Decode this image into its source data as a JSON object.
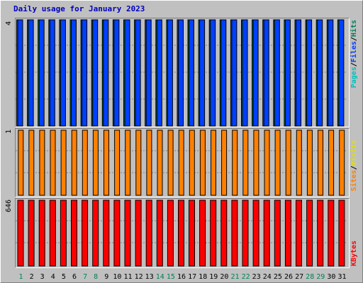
{
  "chart_data": {
    "type": "bar",
    "title": "Daily usage for January 2023",
    "categories": [
      "1",
      "2",
      "3",
      "4",
      "5",
      "6",
      "7",
      "8",
      "9",
      "10",
      "11",
      "12",
      "13",
      "14",
      "15",
      "16",
      "17",
      "18",
      "19",
      "20",
      "21",
      "22",
      "23",
      "24",
      "25",
      "26",
      "27",
      "28",
      "29",
      "30",
      "31"
    ],
    "weekend_days": [
      "1",
      "7",
      "8",
      "14",
      "15",
      "21",
      "22",
      "28",
      "29"
    ],
    "panels": [
      {
        "ymax_label": "4",
        "ymax": 4,
        "legend": [
          "Pages",
          "/",
          "Files",
          "/",
          "Hits"
        ],
        "series": [
          {
            "name": "Hits",
            "color": "#00805c",
            "values": [
              4,
              4,
              4,
              4,
              4,
              4,
              4,
              4,
              4,
              4,
              4,
              4,
              4,
              4,
              4,
              4,
              4,
              4,
              4,
              4,
              4,
              4,
              4,
              4,
              4,
              4,
              4,
              4,
              4,
              4,
              4
            ]
          },
          {
            "name": "Files",
            "color": "#0040ff",
            "values": [
              4,
              4,
              4,
              4,
              4,
              4,
              4,
              4,
              4,
              4,
              4,
              4,
              4,
              4,
              4,
              4,
              4,
              4,
              4,
              4,
              4,
              4,
              4,
              4,
              4,
              4,
              4,
              4,
              4,
              4,
              4
            ]
          },
          {
            "name": "Pages",
            "color": "#00c0c0",
            "values": [
              0,
              0,
              0,
              0,
              0,
              0,
              0,
              0,
              0,
              0,
              0,
              0,
              0,
              0,
              0,
              0,
              0,
              0,
              0,
              0,
              0,
              0,
              0,
              0,
              0,
              0,
              0,
              0,
              0,
              0,
              0
            ]
          }
        ]
      },
      {
        "ymax_label": "1",
        "ymax": 1,
        "legend": [
          "Sites",
          "/",
          "Visits"
        ],
        "series": [
          {
            "name": "Visits",
            "color": "#ffff00",
            "values": [
              0,
              0,
              0,
              0,
              0,
              0,
              0,
              0,
              0,
              0,
              0,
              0,
              0,
              0,
              0,
              0,
              0,
              0,
              0,
              0,
              0,
              0,
              0,
              0,
              0,
              0,
              0,
              0,
              0,
              0,
              0
            ]
          },
          {
            "name": "Sites",
            "color": "#ff8000",
            "values": [
              1,
              1,
              1,
              1,
              1,
              1,
              1,
              1,
              1,
              1,
              1,
              1,
              1,
              1,
              1,
              1,
              1,
              1,
              1,
              1,
              1,
              1,
              1,
              1,
              1,
              1,
              1,
              1,
              1,
              1,
              1
            ]
          }
        ]
      },
      {
        "ymax_label": "646",
        "ymax": 646,
        "legend": [
          "KBytes"
        ],
        "series": [
          {
            "name": "KBytes",
            "color": "#ff0000",
            "values": [
              646,
              646,
              646,
              646,
              646,
              646,
              646,
              646,
              646,
              646,
              646,
              646,
              646,
              646,
              646,
              646,
              646,
              646,
              646,
              646,
              646,
              646,
              646,
              646,
              646,
              646,
              646,
              646,
              646,
              646,
              646
            ]
          }
        ]
      }
    ],
    "colors": {
      "background": "#c0c0c0",
      "title": "#0000c0",
      "weekday_label": "#000000",
      "weekend_label": "#00805c",
      "gridline": "#808080",
      "separator": "#000000"
    }
  }
}
